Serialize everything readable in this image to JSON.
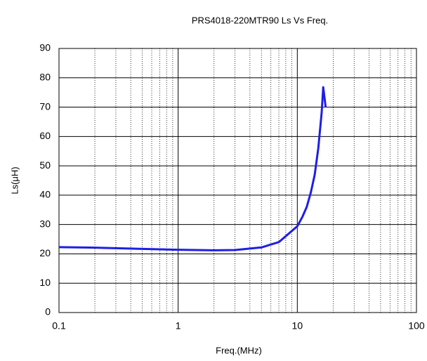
{
  "chart_data": {
    "type": "line",
    "title": "PRS4018-220MTR90 Ls Vs Freq.",
    "xlabel": "Freq.(MHz)",
    "ylabel": "Ls(μH)",
    "xscale": "log",
    "xlim": [
      0.1,
      100
    ],
    "xticks": [
      0.1,
      1,
      10,
      100
    ],
    "xminor_ticks": [
      0.2,
      0.3,
      0.4,
      0.5,
      0.6,
      0.7,
      0.8,
      0.9,
      2,
      3,
      4,
      5,
      6,
      7,
      8,
      9,
      20,
      30,
      40,
      50,
      60,
      70,
      80,
      90
    ],
    "ylim": [
      0,
      90
    ],
    "yticks": [
      0,
      10,
      20,
      30,
      40,
      50,
      60,
      70,
      80,
      90
    ],
    "grid": true,
    "x": [
      0.1,
      0.2,
      0.5,
      1,
      2,
      3,
      5,
      7,
      10,
      11,
      12,
      13,
      14,
      15,
      16,
      16.5,
      17.3
    ],
    "series": [
      {
        "name": "Ls",
        "color": "#1e1ee6",
        "values": [
          22.3,
          22.1,
          21.7,
          21.4,
          21.2,
          21.3,
          22.2,
          24,
          29.4,
          32.5,
          36,
          41,
          47,
          56,
          68,
          76.8,
          70
        ]
      }
    ]
  }
}
